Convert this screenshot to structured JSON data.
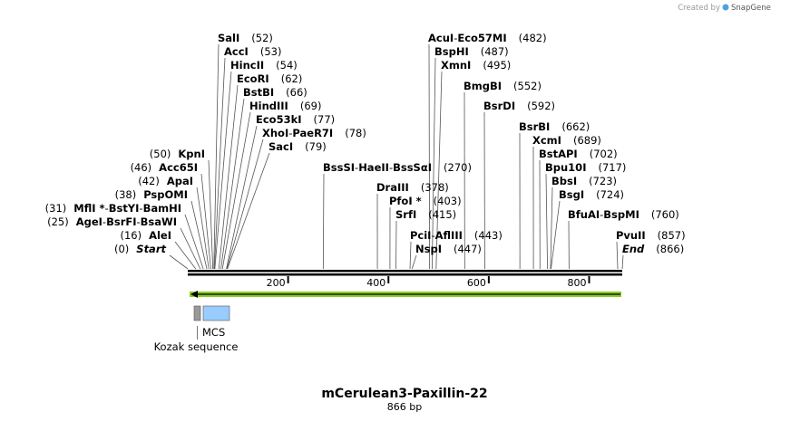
{
  "credit": {
    "prefix": "Created by",
    "brand": "SnapGene"
  },
  "sequence": {
    "name": "mCerulean3-Paxillin-22",
    "length_label": "866 bp",
    "length": 866
  },
  "colors": {
    "backbone": "#000000",
    "feature_arrow": "#88cc22",
    "mcs_box": "#99ccff",
    "kozak_box": "#999999",
    "leader": "#555555"
  },
  "ruler": {
    "ticks": [
      "200",
      "400",
      "600",
      "800"
    ]
  },
  "features": {
    "mcs": {
      "label": "MCS"
    },
    "kozak": {
      "label": "Kozak sequence"
    }
  },
  "sites": [
    {
      "names": [
        "SalI"
      ],
      "pos": "(52)",
      "bp": 52
    },
    {
      "names": [
        "AccI"
      ],
      "pos": "(53)",
      "bp": 53
    },
    {
      "names": [
        "HincII"
      ],
      "pos": "(54)",
      "bp": 54
    },
    {
      "names": [
        "EcoRI"
      ],
      "pos": "(62)",
      "bp": 62
    },
    {
      "names": [
        "BstBI"
      ],
      "pos": "(66)",
      "bp": 66
    },
    {
      "names": [
        "HindIII"
      ],
      "pos": "(69)",
      "bp": 69
    },
    {
      "names": [
        "Eco53kI"
      ],
      "pos": "(77)",
      "bp": 77
    },
    {
      "names": [
        "XhoI",
        "PaeR7I"
      ],
      "pos": "(78)",
      "bp": 78
    },
    {
      "names": [
        "SacI"
      ],
      "pos": "(79)",
      "bp": 79
    },
    {
      "names": [
        "KpnI"
      ],
      "pos": "(50)",
      "bp": 50
    },
    {
      "names": [
        "Acc65I"
      ],
      "pos": "(46)",
      "bp": 46
    },
    {
      "names": [
        "ApaI"
      ],
      "pos": "(42)",
      "bp": 42
    },
    {
      "names": [
        "PspOMI"
      ],
      "pos": "(38)",
      "bp": 38
    },
    {
      "names": [
        "MflI *",
        "BstYI",
        "BamHI"
      ],
      "pos": "(31)",
      "bp": 31
    },
    {
      "names": [
        "AgeI",
        "BsrFI",
        "BsaWI"
      ],
      "pos": "(25)",
      "bp": 25
    },
    {
      "names": [
        "AleI"
      ],
      "pos": "(16)",
      "bp": 16
    },
    {
      "names": [
        "Start"
      ],
      "pos": "(0)",
      "bp": 0,
      "italic": true
    },
    {
      "names": [
        "BssSI",
        "HaeII",
        "BssSαI"
      ],
      "pos": "(270)",
      "bp": 270
    },
    {
      "names": [
        "AcuI",
        "Eco57MI"
      ],
      "pos": "(482)",
      "bp": 482
    },
    {
      "names": [
        "BspHI"
      ],
      "pos": "(487)",
      "bp": 487
    },
    {
      "names": [
        "XmnI"
      ],
      "pos": "(495)",
      "bp": 495
    },
    {
      "names": [
        "BmgBI"
      ],
      "pos": "(552)",
      "bp": 552
    },
    {
      "names": [
        "BsrDI"
      ],
      "pos": "(592)",
      "bp": 592
    },
    {
      "names": [
        "DraIII"
      ],
      "pos": "(378)",
      "bp": 378
    },
    {
      "names": [
        "PfoI *"
      ],
      "pos": "(403)",
      "bp": 403
    },
    {
      "names": [
        "SrfI"
      ],
      "pos": "(415)",
      "bp": 415
    },
    {
      "names": [
        "PciI",
        "AflIII"
      ],
      "pos": "(443)",
      "bp": 443
    },
    {
      "names": [
        "NspI"
      ],
      "pos": "(447)",
      "bp": 447
    },
    {
      "names": [
        "BsrBI"
      ],
      "pos": "(662)",
      "bp": 662
    },
    {
      "names": [
        "XcmI"
      ],
      "pos": "(689)",
      "bp": 689
    },
    {
      "names": [
        "BstAPI"
      ],
      "pos": "(702)",
      "bp": 702
    },
    {
      "names": [
        "Bpu10I"
      ],
      "pos": "(717)",
      "bp": 717
    },
    {
      "names": [
        "BbsI"
      ],
      "pos": "(723)",
      "bp": 723
    },
    {
      "names": [
        "BsgI"
      ],
      "pos": "(724)",
      "bp": 724
    },
    {
      "names": [
        "BfuAI",
        "BspMI"
      ],
      "pos": "(760)",
      "bp": 760
    },
    {
      "names": [
        "PvuII"
      ],
      "pos": "(857)",
      "bp": 857
    },
    {
      "names": [
        "End"
      ],
      "pos": "(866)",
      "bp": 866,
      "italic": true
    }
  ]
}
